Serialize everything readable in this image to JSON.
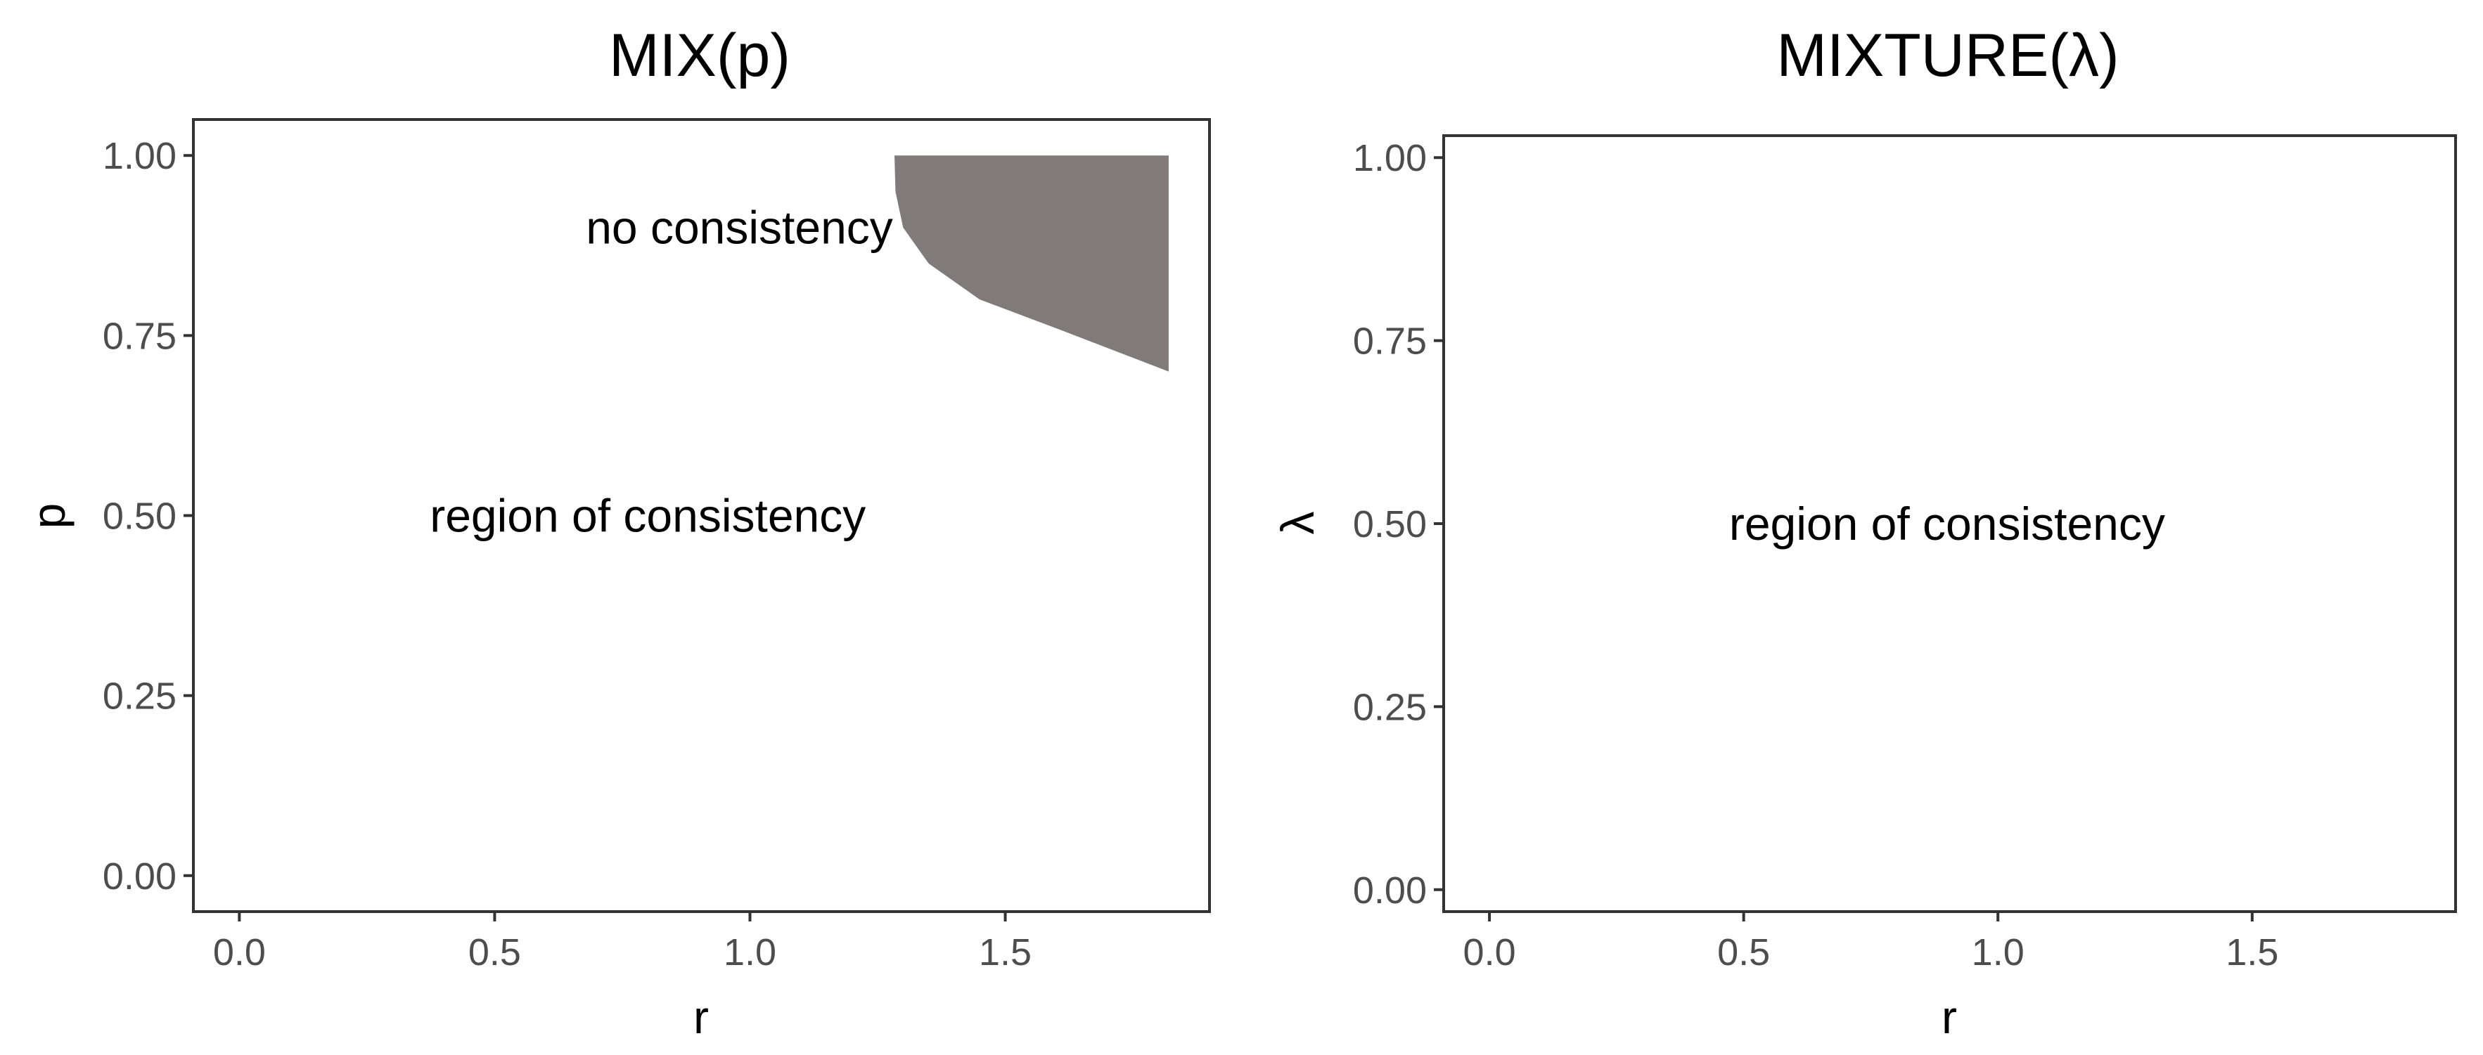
{
  "chart_data": [
    {
      "type": "area",
      "title": "MIX(p)",
      "xlabel": "r",
      "ylabel": "p",
      "xlim": [
        -0.09,
        1.9
      ],
      "ylim": [
        -0.05,
        1.05
      ],
      "x_ticks": [
        "0.0",
        "0.5",
        "1.0",
        "1.5"
      ],
      "y_ticks": [
        "0.00",
        "0.25",
        "0.50",
        "0.75",
        "1.00"
      ],
      "grid": false,
      "series": [
        {
          "region": "no consistency",
          "fill_color": "#807b7a",
          "upper": [
            [
              1.283,
              1.0
            ],
            [
              1.82,
              1.0
            ]
          ],
          "lower": [
            [
              1.283,
              1.0
            ],
            [
              1.285,
              0.95
            ],
            [
              1.3,
              0.9
            ],
            [
              1.35,
              0.85
            ],
            [
              1.45,
              0.8
            ],
            [
              1.6,
              0.76
            ],
            [
              1.82,
              0.7
            ]
          ]
        }
      ],
      "annotations": [
        {
          "text": "no consistency",
          "x": 1.28,
          "y": 0.9,
          "anchor": "end"
        },
        {
          "text": "region of consistency",
          "x": 0.8,
          "y": 0.5,
          "anchor": "middle"
        }
      ]
    },
    {
      "type": "area",
      "title": "MIXTURE(λ)",
      "xlabel": "r",
      "ylabel": "λ",
      "xlim": [
        -0.09,
        1.9
      ],
      "ylim": [
        -0.03,
        1.03
      ],
      "x_ticks": [
        "0.0",
        "0.5",
        "1.0",
        "1.5"
      ],
      "y_ticks": [
        "0.00",
        "0.25",
        "0.50",
        "0.75",
        "1.00"
      ],
      "grid": false,
      "series": [],
      "annotations": [
        {
          "text": "region of consistency",
          "x": 0.9,
          "y": 0.5,
          "anchor": "middle"
        }
      ]
    }
  ]
}
